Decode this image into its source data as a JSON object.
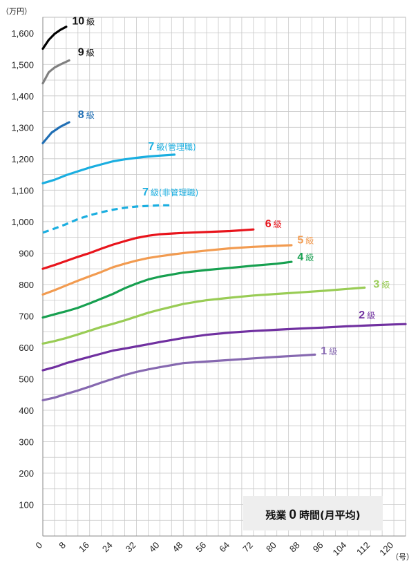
{
  "chart_data": {
    "type": "line",
    "y_unit": "（万円）",
    "x_unit": "（号）",
    "xlim": [
      0,
      124
    ],
    "ylim": [
      0,
      1650
    ],
    "x_ticks": [
      0,
      8,
      16,
      24,
      32,
      40,
      48,
      56,
      64,
      72,
      80,
      88,
      96,
      104,
      112,
      120
    ],
    "y_ticks": [
      100,
      200,
      300,
      400,
      500,
      600,
      700,
      800,
      900,
      1000,
      1100,
      1200,
      1300,
      1400,
      1500,
      1600
    ],
    "y_tick_labels": [
      "100",
      "200",
      "300",
      "400",
      "500",
      "600",
      "700",
      "800",
      "900",
      "1,000",
      "1,100",
      "1,200",
      "1,300",
      "1,400",
      "1,500",
      "1,600"
    ],
    "grid": true,
    "note": {
      "prefix": "残業",
      "number": "0",
      "suffix": "時間(月平均)"
    },
    "series": [
      {
        "name": "10級",
        "label_num": "10",
        "label_suffix": "級",
        "color": "#000000",
        "dash": false,
        "label_at": [
          10,
          1627
        ],
        "anchor": "start",
        "points": [
          [
            0,
            1550
          ],
          [
            2,
            1578
          ],
          [
            4,
            1597
          ],
          [
            6,
            1610
          ],
          [
            8,
            1620
          ]
        ]
      },
      {
        "name": "9級",
        "label_num": "9",
        "label_suffix": "級",
        "color": "#808080",
        "dash": false,
        "label_at": [
          12,
          1528
        ],
        "anchor": "start",
        "points": [
          [
            0,
            1440
          ],
          [
            2,
            1475
          ],
          [
            4,
            1490
          ],
          [
            6,
            1500
          ],
          [
            9,
            1513
          ]
        ]
      },
      {
        "name": "8級",
        "label_num": "8",
        "label_suffix": "級",
        "color": "#1f6eb4",
        "dash": false,
        "label_at": [
          12,
          1329
        ],
        "anchor": "start",
        "points": [
          [
            0,
            1250
          ],
          [
            3,
            1283
          ],
          [
            6,
            1302
          ],
          [
            9,
            1316
          ]
        ]
      },
      {
        "name": "7級(管理職)",
        "label_num": "7",
        "label_suffix": "級(管理職)",
        "color": "#1aaee0",
        "dash": false,
        "label_at": [
          36,
          1228
        ],
        "anchor": "start",
        "points": [
          [
            0,
            1122
          ],
          [
            4,
            1133
          ],
          [
            8,
            1148
          ],
          [
            12,
            1160
          ],
          [
            16,
            1172
          ],
          [
            20,
            1182
          ],
          [
            24,
            1192
          ],
          [
            28,
            1198
          ],
          [
            32,
            1203
          ],
          [
            36,
            1207
          ],
          [
            40,
            1210
          ],
          [
            45,
            1213
          ]
        ]
      },
      {
        "name": "7級(非管理職)",
        "label_num": "7",
        "label_suffix": "級(非管理職)",
        "color": "#1aaee0",
        "dash": true,
        "label_at": [
          34,
          1083
        ],
        "anchor": "start",
        "points": [
          [
            0,
            965
          ],
          [
            4,
            978
          ],
          [
            8,
            992
          ],
          [
            12,
            1008
          ],
          [
            16,
            1020
          ],
          [
            20,
            1030
          ],
          [
            24,
            1038
          ],
          [
            28,
            1044
          ],
          [
            32,
            1048
          ],
          [
            36,
            1050
          ],
          [
            40,
            1052
          ],
          [
            44,
            1052
          ]
        ]
      },
      {
        "name": "6級",
        "label_num": "6",
        "label_suffix": "級",
        "color": "#e8141c",
        "dash": false,
        "label_at": [
          76,
          982
        ],
        "anchor": "start",
        "points": [
          [
            0,
            850
          ],
          [
            4,
            862
          ],
          [
            8,
            875
          ],
          [
            12,
            888
          ],
          [
            16,
            900
          ],
          [
            20,
            914
          ],
          [
            24,
            927
          ],
          [
            28,
            938
          ],
          [
            32,
            948
          ],
          [
            36,
            955
          ],
          [
            40,
            960
          ],
          [
            48,
            964
          ],
          [
            56,
            967
          ],
          [
            64,
            970
          ],
          [
            72,
            975
          ]
        ]
      },
      {
        "name": "5級",
        "label_num": "5",
        "label_suffix": "級",
        "color": "#f29b50",
        "dash": false,
        "label_at": [
          87,
          930
        ],
        "anchor": "start",
        "points": [
          [
            0,
            768
          ],
          [
            4,
            782
          ],
          [
            8,
            797
          ],
          [
            12,
            812
          ],
          [
            16,
            826
          ],
          [
            20,
            840
          ],
          [
            24,
            855
          ],
          [
            28,
            866
          ],
          [
            32,
            876
          ],
          [
            36,
            884
          ],
          [
            40,
            890
          ],
          [
            48,
            900
          ],
          [
            56,
            908
          ],
          [
            64,
            915
          ],
          [
            72,
            920
          ],
          [
            80,
            923
          ],
          [
            85,
            925
          ]
        ]
      },
      {
        "name": "4級",
        "label_num": "4",
        "label_suffix": "級",
        "color": "#17a050",
        "dash": false,
        "label_at": [
          87,
          877
        ],
        "anchor": "start",
        "points": [
          [
            0,
            695
          ],
          [
            4,
            705
          ],
          [
            8,
            715
          ],
          [
            12,
            726
          ],
          [
            16,
            740
          ],
          [
            20,
            755
          ],
          [
            24,
            770
          ],
          [
            28,
            788
          ],
          [
            32,
            803
          ],
          [
            36,
            816
          ],
          [
            40,
            825
          ],
          [
            48,
            838
          ],
          [
            56,
            846
          ],
          [
            64,
            853
          ],
          [
            72,
            860
          ],
          [
            80,
            866
          ],
          [
            85,
            872
          ]
        ]
      },
      {
        "name": "3級",
        "label_num": "3",
        "label_suffix": "級",
        "color": "#99cc55",
        "dash": false,
        "label_at": [
          113,
          790
        ],
        "anchor": "start",
        "points": [
          [
            0,
            612
          ],
          [
            4,
            620
          ],
          [
            8,
            630
          ],
          [
            12,
            641
          ],
          [
            16,
            653
          ],
          [
            20,
            665
          ],
          [
            24,
            675
          ],
          [
            28,
            686
          ],
          [
            32,
            698
          ],
          [
            36,
            710
          ],
          [
            40,
            720
          ],
          [
            48,
            738
          ],
          [
            56,
            750
          ],
          [
            64,
            758
          ],
          [
            72,
            765
          ],
          [
            80,
            770
          ],
          [
            88,
            775
          ],
          [
            96,
            780
          ],
          [
            104,
            786
          ],
          [
            110,
            790
          ]
        ]
      },
      {
        "name": "2級",
        "label_num": "2",
        "label_suffix": "級",
        "color": "#7030a0",
        "dash": false,
        "label_at": [
          108,
          692
        ],
        "anchor": "start",
        "points": [
          [
            0,
            527
          ],
          [
            4,
            537
          ],
          [
            8,
            550
          ],
          [
            12,
            560
          ],
          [
            16,
            570
          ],
          [
            20,
            580
          ],
          [
            24,
            590
          ],
          [
            28,
            596
          ],
          [
            32,
            603
          ],
          [
            36,
            610
          ],
          [
            40,
            617
          ],
          [
            48,
            630
          ],
          [
            56,
            640
          ],
          [
            64,
            647
          ],
          [
            72,
            652
          ],
          [
            80,
            656
          ],
          [
            88,
            660
          ],
          [
            96,
            663
          ],
          [
            104,
            667
          ],
          [
            112,
            670
          ],
          [
            120,
            673
          ],
          [
            124,
            674
          ]
        ]
      },
      {
        "name": "1級",
        "label_num": "1",
        "label_suffix": "級",
        "color": "#8668b0",
        "dash": false,
        "label_at": [
          95,
          578
        ],
        "anchor": "start",
        "points": [
          [
            0,
            432
          ],
          [
            4,
            440
          ],
          [
            8,
            452
          ],
          [
            12,
            463
          ],
          [
            16,
            475
          ],
          [
            20,
            488
          ],
          [
            24,
            500
          ],
          [
            28,
            512
          ],
          [
            32,
            522
          ],
          [
            36,
            530
          ],
          [
            40,
            537
          ],
          [
            48,
            550
          ],
          [
            56,
            555
          ],
          [
            64,
            560
          ],
          [
            72,
            565
          ],
          [
            80,
            570
          ],
          [
            88,
            574
          ],
          [
            93,
            577
          ]
        ]
      }
    ]
  }
}
